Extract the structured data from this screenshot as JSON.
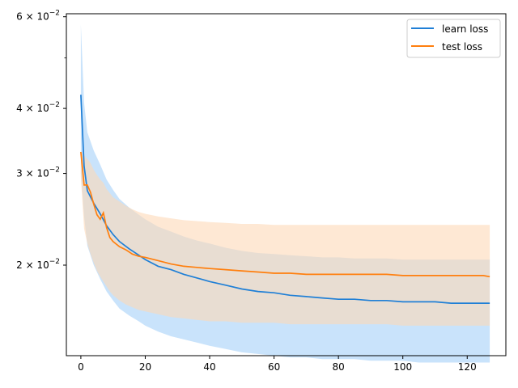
{
  "chart_data": {
    "type": "line",
    "title": "",
    "xlabel": "",
    "ylabel": "",
    "yscale": "log",
    "xlim": [
      -4.5,
      132
    ],
    "ylim": [
      0.0134,
      0.0608
    ],
    "x_ticks": [
      0,
      20,
      40,
      60,
      80,
      100,
      120
    ],
    "x_tick_labels": [
      "0",
      "20",
      "40",
      "60",
      "80",
      "100",
      "120"
    ],
    "y_ticks": [
      0.02,
      0.03,
      0.04,
      0.06
    ],
    "y_tick_labels": [
      {
        "base": "2 × 10",
        "exp": "−2"
      },
      {
        "base": "3 × 10",
        "exp": "−2"
      },
      {
        "base": "4 × 10",
        "exp": "−2"
      },
      {
        "base": "6 × 10",
        "exp": "−2"
      }
    ],
    "y_minor_ticks": [
      0.05
    ],
    "grid": false,
    "legend_position": "upper right",
    "series": [
      {
        "name": "learn loss",
        "color": "#1f7fd6",
        "band_color": "#b7d9f9",
        "x": [
          0,
          1,
          2,
          4,
          6,
          8,
          10,
          12,
          15,
          18,
          20,
          24,
          28,
          32,
          36,
          40,
          45,
          50,
          55,
          60,
          65,
          70,
          75,
          80,
          85,
          90,
          95,
          100,
          105,
          110,
          115,
          120,
          125,
          127
        ],
        "values": [
          0.0425,
          0.031,
          0.0278,
          0.0263,
          0.0251,
          0.0238,
          0.0229,
          0.0222,
          0.0215,
          0.0209,
          0.0205,
          0.0199,
          0.0196,
          0.0192,
          0.0189,
          0.0186,
          0.0183,
          0.018,
          0.0178,
          0.0177,
          0.0175,
          0.0174,
          0.0173,
          0.0172,
          0.0172,
          0.0171,
          0.0171,
          0.017,
          0.017,
          0.017,
          0.0169,
          0.0169,
          0.0169,
          0.0169
        ],
        "upper": [
          0.058,
          0.041,
          0.036,
          0.0332,
          0.0312,
          0.0292,
          0.0279,
          0.0268,
          0.0258,
          0.025,
          0.0245,
          0.0237,
          0.0232,
          0.0227,
          0.0223,
          0.022,
          0.0216,
          0.0213,
          0.0211,
          0.021,
          0.0209,
          0.0208,
          0.0207,
          0.0207,
          0.0206,
          0.0206,
          0.0206,
          0.0205,
          0.0205,
          0.0205,
          0.0205,
          0.0205,
          0.0205,
          0.0205
        ],
        "lower": [
          0.03,
          0.0248,
          0.0218,
          0.02,
          0.0188,
          0.0178,
          0.0171,
          0.0165,
          0.016,
          0.0156,
          0.0153,
          0.0149,
          0.0146,
          0.0144,
          0.0142,
          0.014,
          0.0138,
          0.0136,
          0.0135,
          0.0134,
          0.0133,
          0.0133,
          0.0132,
          0.0132,
          0.0132,
          0.0131,
          0.0131,
          0.0131,
          0.013,
          0.013,
          0.013,
          0.013,
          0.013,
          0.013
        ]
      },
      {
        "name": "test loss",
        "color": "#ff7f0e",
        "band_color": "#fdd9b8",
        "x": [
          0,
          1,
          2,
          3,
          4,
          5,
          6,
          7,
          8,
          9,
          10,
          12,
          14,
          16,
          18,
          20,
          24,
          28,
          32,
          36,
          40,
          45,
          50,
          55,
          60,
          65,
          70,
          75,
          80,
          85,
          90,
          95,
          100,
          105,
          110,
          115,
          120,
          125,
          127
        ],
        "values": [
          0.033,
          0.0285,
          0.0285,
          0.0276,
          0.0262,
          0.025,
          0.0245,
          0.0252,
          0.0236,
          0.0226,
          0.0222,
          0.0217,
          0.0214,
          0.021,
          0.0208,
          0.0207,
          0.0204,
          0.0201,
          0.0199,
          0.0198,
          0.0197,
          0.0196,
          0.0195,
          0.0194,
          0.0193,
          0.0193,
          0.0192,
          0.0192,
          0.0192,
          0.0192,
          0.0192,
          0.0192,
          0.0191,
          0.0191,
          0.0191,
          0.0191,
          0.0191,
          0.0191,
          0.019
        ],
        "upper": [
          0.033,
          0.0325,
          0.032,
          0.0314,
          0.0305,
          0.0298,
          0.0292,
          0.0288,
          0.028,
          0.0275,
          0.027,
          0.0265,
          0.026,
          0.0256,
          0.0253,
          0.0251,
          0.0248,
          0.0246,
          0.0244,
          0.0243,
          0.0242,
          0.0241,
          0.024,
          0.024,
          0.0239,
          0.0239,
          0.0239,
          0.0239,
          0.0239,
          0.0239,
          0.0239,
          0.0239,
          0.0239,
          0.0239,
          0.0239,
          0.0239,
          0.0239,
          0.0239,
          0.0239
        ],
        "lower": [
          0.0295,
          0.0235,
          0.022,
          0.021,
          0.0202,
          0.0195,
          0.019,
          0.0186,
          0.0182,
          0.0178,
          0.0175,
          0.0171,
          0.0168,
          0.0166,
          0.0164,
          0.0163,
          0.0161,
          0.0159,
          0.0158,
          0.0157,
          0.0156,
          0.0156,
          0.0155,
          0.0155,
          0.0155,
          0.0154,
          0.0154,
          0.0154,
          0.0154,
          0.0154,
          0.0154,
          0.0154,
          0.0153,
          0.0153,
          0.0153,
          0.0153,
          0.0153,
          0.0153,
          0.0153
        ]
      }
    ]
  }
}
